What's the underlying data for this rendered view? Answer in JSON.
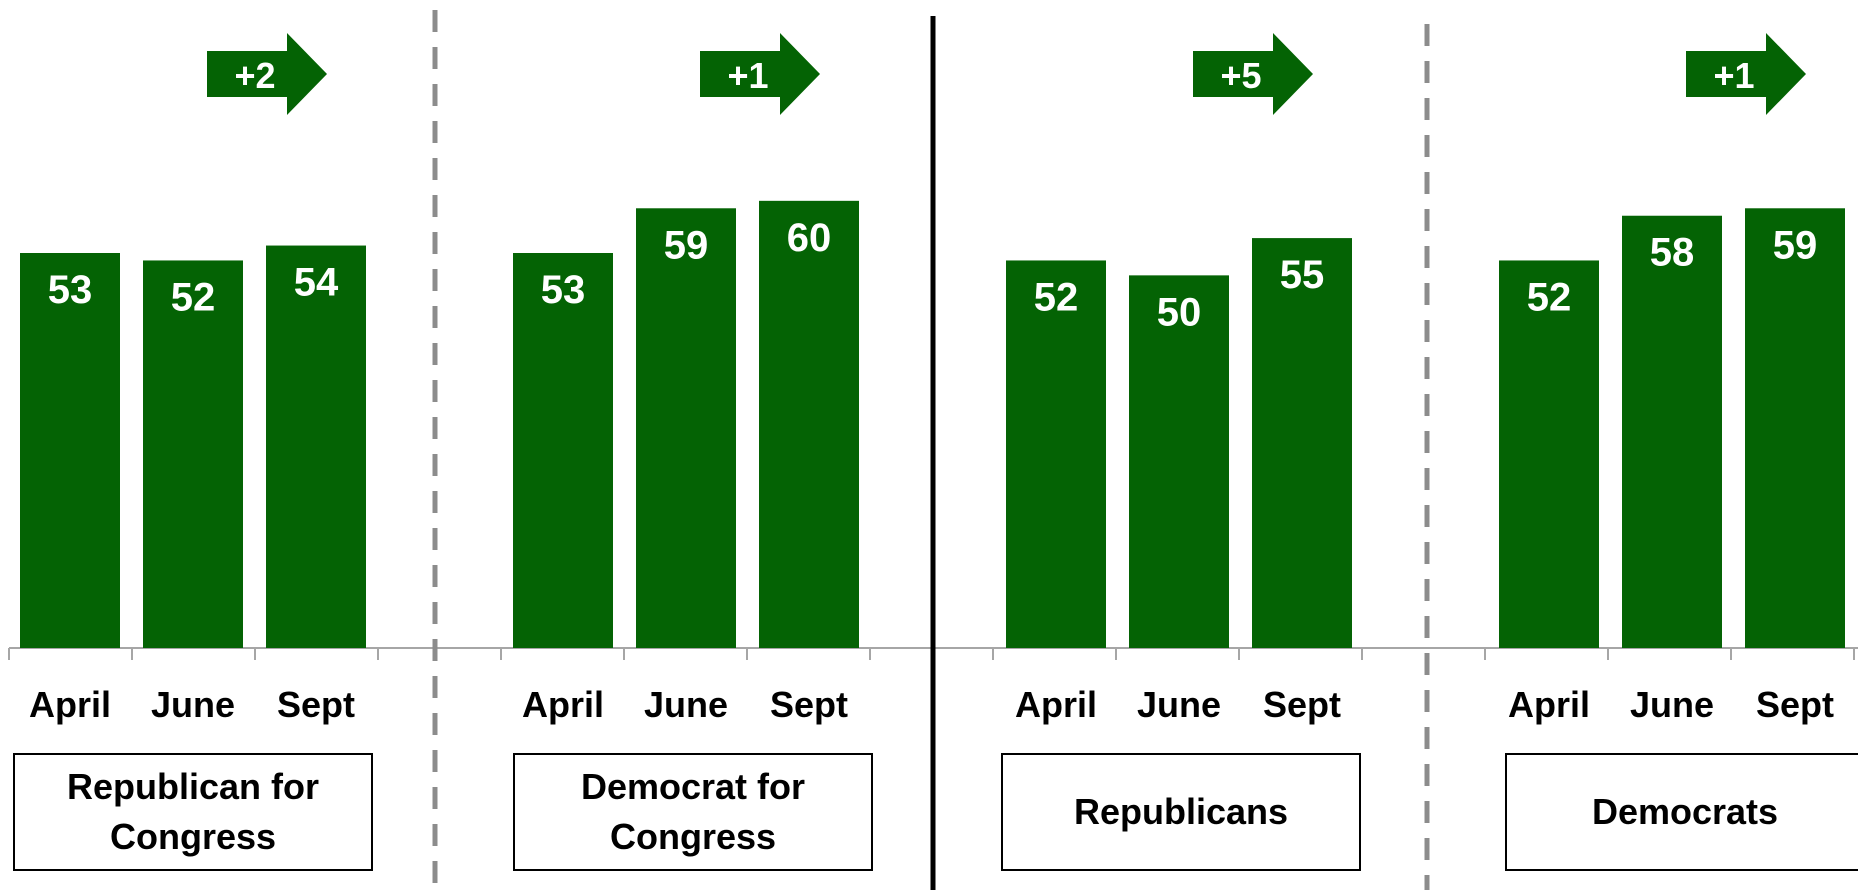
{
  "colors": {
    "bar": "#046304",
    "divider_dashed": "#8c8c8c",
    "divider_solid": "#000000",
    "axis": "#a6a6a6"
  },
  "chart_data": {
    "type": "bar",
    "categories": [
      "April",
      "June",
      "Sept"
    ],
    "groups": [
      {
        "name": "Republican for\nCongress",
        "values": [
          53,
          52,
          54
        ],
        "change": "+2"
      },
      {
        "name": "Democrat for\nCongress",
        "values": [
          53,
          59,
          60
        ],
        "change": "+1"
      },
      {
        "name": "Republicans",
        "values": [
          52,
          50,
          55
        ],
        "change": "+5"
      },
      {
        "name": "Democrats",
        "values": [
          52,
          58,
          59
        ],
        "change": "+1"
      }
    ],
    "ylim": [
      0,
      85
    ],
    "grid": false,
    "legend": "none"
  }
}
